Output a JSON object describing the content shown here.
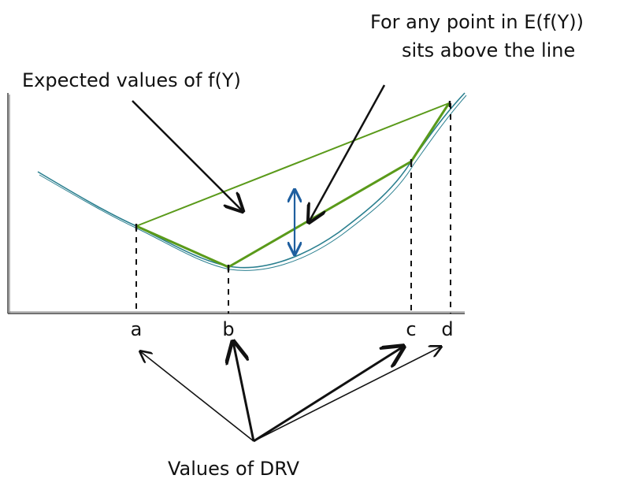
{
  "annotations": {
    "top_right_line1": "For any point in E(f(Y))",
    "top_right_line2": "sits above the line",
    "expected": "Expected values of f(Y)",
    "drv": "Values of DRV"
  },
  "ticks": [
    "a",
    "b",
    "c",
    "d"
  ],
  "colors": {
    "curve": "#2a7f8f",
    "chord": "#5a9a1a",
    "arrow": "#1f5f9f",
    "ink": "#111111"
  }
}
